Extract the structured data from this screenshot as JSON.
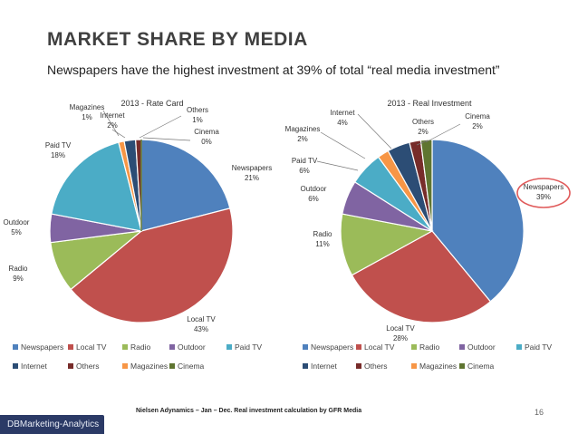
{
  "header": {
    "title": "MARKET SHARE BY MEDIA",
    "subtitle": "Newspapers have the highest investment at 39% of total “real media investment”"
  },
  "footer": {
    "source": "Nielsen Adynamics – Jan – Dec.  Real investment calculation by GFR Media",
    "page_number": "16",
    "brand": "DBMarketing-Analytics"
  },
  "chart_data": [
    {
      "type": "pie",
      "title": "2013 - Rate Card",
      "unit": "%",
      "categories": [
        "Newspapers",
        "Local TV",
        "Radio",
        "Outdoor",
        "Paid TV",
        "Magazines",
        "Internet",
        "Others",
        "Cinema"
      ],
      "values": [
        21,
        43,
        9,
        5,
        18,
        1,
        2,
        1,
        0
      ],
      "colors": [
        "#4f81bd",
        "#c0504d",
        "#9bbb59",
        "#8064a2",
        "#4bacc6",
        "#f79646",
        "#2c4d75",
        "#772c2a",
        "#5f7530"
      ],
      "legend": {
        "position": "bottom",
        "row1": [
          "Newspapers",
          "Local TV",
          "Radio",
          "Outdoor",
          "Paid TV"
        ],
        "row2": [
          "Internet",
          "Others",
          "Magazines",
          "Cinema"
        ]
      }
    },
    {
      "type": "pie",
      "title": "2013 - Real Investment",
      "unit": "%",
      "categories": [
        "Newspapers",
        "Local TV",
        "Radio",
        "Outdoor",
        "Paid TV",
        "Magazines",
        "Internet",
        "Others",
        "Cinema"
      ],
      "values": [
        39,
        28,
        11,
        6,
        6,
        2,
        4,
        2,
        2
      ],
      "colors": [
        "#4f81bd",
        "#c0504d",
        "#9bbb59",
        "#8064a2",
        "#4bacc6",
        "#f79646",
        "#2c4d75",
        "#772c2a",
        "#5f7530"
      ],
      "highlight": "Newspapers",
      "legend": {
        "position": "bottom",
        "row1": [
          "Newspapers",
          "Local TV",
          "Radio",
          "Outdoor",
          "Paid TV"
        ],
        "row2": [
          "Internet",
          "Others",
          "Magazines",
          "Cinema"
        ]
      }
    }
  ]
}
